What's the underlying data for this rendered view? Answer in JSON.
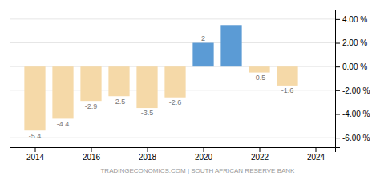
{
  "chart_data": {
    "type": "bar",
    "x": [
      2014,
      2015,
      2016,
      2017,
      2018,
      2019,
      2020,
      2021,
      2022,
      2023
    ],
    "values": [
      -5.4,
      -4.4,
      -2.9,
      -2.5,
      -3.5,
      -2.6,
      2.0,
      3.5,
      -0.5,
      -1.6
    ],
    "value_labels": [
      "-5.4",
      "-4.4",
      "-2.9",
      "-2.5",
      "-3.5",
      "-2.6",
      "2",
      null,
      "-0.5",
      "-1.6"
    ],
    "data_labels": true,
    "colors": [
      "#f5d9a8",
      "#f5d9a8",
      "#f5d9a8",
      "#f5d9a8",
      "#f5d9a8",
      "#f5d9a8",
      "#5b9bd5",
      "#5b9bd5",
      "#f5d9a8",
      "#f5d9a8"
    ],
    "xlim": [
      2013.1,
      2024.7
    ],
    "xticks": [
      2014,
      2016,
      2018,
      2020,
      2022,
      2024
    ],
    "ylim": [
      -6.8,
      4.8
    ],
    "yticks": [
      {
        "value": 4.0,
        "label": "4.00 %"
      },
      {
        "value": 2.0,
        "label": "2.00 %"
      },
      {
        "value": 0.0,
        "label": "0.00 %"
      },
      {
        "value": -2.0,
        "label": "-2.00 %"
      },
      {
        "value": -4.0,
        "label": "-4.00 %"
      },
      {
        "value": -6.0,
        "label": "-6.00 %"
      }
    ],
    "grid": true,
    "annotations": [
      "TRADINGECONOMICS.COM | SOUTH AFRICAN RESERVE BANK"
    ]
  }
}
